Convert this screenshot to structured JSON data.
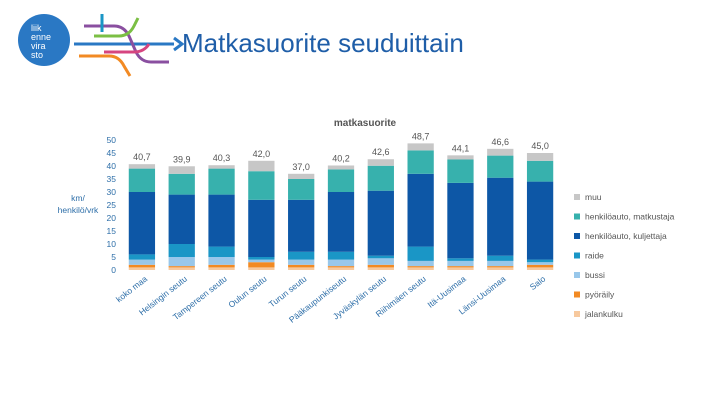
{
  "slide": {
    "title": "Matkasuorite seuduittain",
    "logo_lines": [
      "liik",
      "enne",
      "vira",
      "sto"
    ]
  },
  "colors": {
    "muu": "#c7c7c7",
    "henkiloauto_matkustaja": "#37b1ad",
    "henkiloauto_kuljettaja": "#0d57a6",
    "raide": "#1a96c6",
    "bussi": "#98c7ea",
    "pyoraily": "#f28a23",
    "jalankulku": "#f7c99e",
    "axis_text": "#2d6ea8",
    "logo_blue": "#2a78c4"
  },
  "chart_data": {
    "type": "bar",
    "stacked": true,
    "title": "matkasuorite",
    "ylabel": "km/ henkilö/vrk",
    "ylim": [
      0,
      50
    ],
    "yticks": [
      0,
      5,
      10,
      15,
      20,
      25,
      30,
      35,
      40,
      45,
      50
    ],
    "categories": [
      "koko maa",
      "Helsingin seutu",
      "Tampereen seutu",
      "Oulun seutu",
      "Turun seutu",
      "Pääkaupunkiseutu",
      "Jyväskylän seutu",
      "Riihimäen seutu",
      "Itä-Uusimaa",
      "Länsi-Uusimaa",
      "Salo"
    ],
    "totals_labels": [
      "40,7",
      "39,9",
      "40,3",
      "42,0",
      "37,0",
      "40,2",
      "42,6",
      "48,7",
      "44,1",
      "46,6",
      "45,0"
    ],
    "totals": [
      40.7,
      39.9,
      40.3,
      42.0,
      37.0,
      40.2,
      42.6,
      48.7,
      44.1,
      46.6,
      45.0
    ],
    "series": [
      {
        "name": "jalankulku",
        "key": "jalankulku",
        "values": [
          1,
          1,
          1,
          1,
          1,
          1,
          1,
          1,
          1,
          1,
          1
        ]
      },
      {
        "name": "pyöräily",
        "key": "pyoraily",
        "values": [
          1,
          0.5,
          1,
          2,
          1,
          0.5,
          1,
          0.5,
          0.5,
          0.5,
          1
        ]
      },
      {
        "name": "bussi",
        "key": "bussi",
        "values": [
          2,
          3.5,
          3,
          1,
          2,
          2.5,
          2.5,
          2,
          2,
          2,
          1
        ]
      },
      {
        "name": "raide",
        "key": "raide",
        "values": [
          2,
          5,
          4,
          1,
          3,
          3,
          1,
          5.5,
          1,
          2,
          1
        ]
      },
      {
        "name": "henkilöauto, kuljettaja",
        "key": "henkiloauto_kuljettaja",
        "values": [
          24,
          19,
          20,
          22,
          20,
          23,
          25,
          28,
          29,
          30,
          30
        ]
      },
      {
        "name": "henkilöauto, matkustaja",
        "key": "henkiloauto_matkustaja",
        "values": [
          9,
          8,
          10,
          11,
          8,
          8.7,
          9.6,
          9,
          9,
          8.5,
          8
        ]
      },
      {
        "name": "muu",
        "key": "muu",
        "values": [
          1.7,
          2.9,
          1.3,
          4,
          2,
          1.5,
          2.5,
          2.7,
          1.6,
          2.6,
          3
        ]
      }
    ],
    "legend_order": [
      "muu",
      "henkilöauto, matkustaja",
      "henkilöauto, kuljettaja",
      "raide",
      "bussi",
      "pyöräily",
      "jalankulku"
    ],
    "legend_keys": [
      "muu",
      "henkiloauto_matkustaja",
      "henkiloauto_kuljettaja",
      "raide",
      "bussi",
      "pyoraily",
      "jalankulku"
    ],
    "legend_position": "right",
    "grid": false
  }
}
